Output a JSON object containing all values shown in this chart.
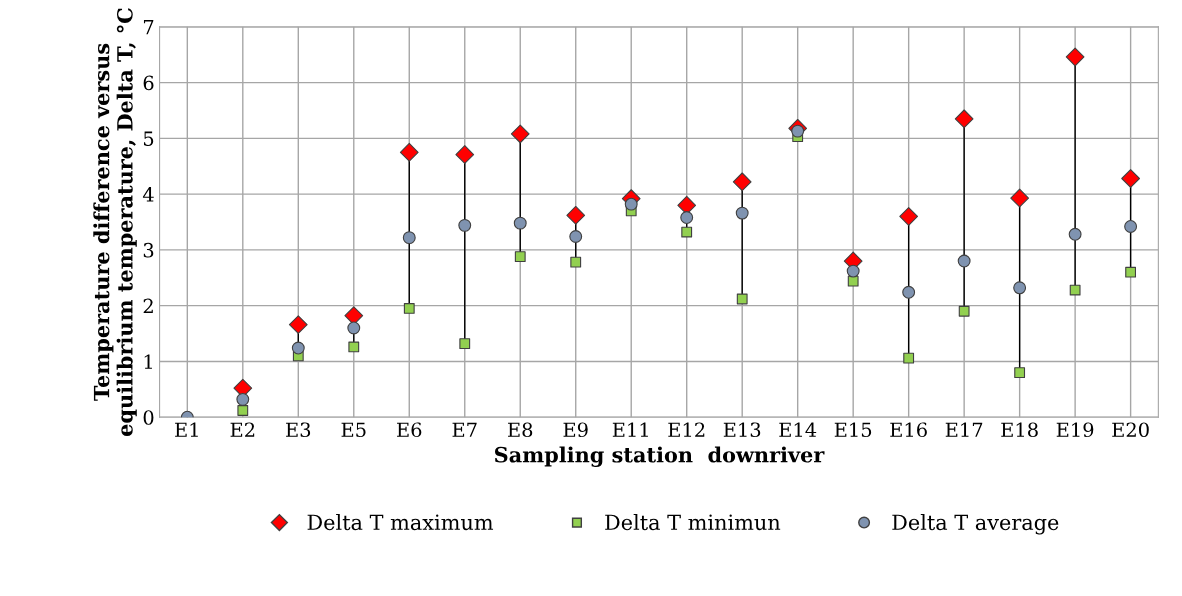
{
  "chart_data": {
    "type": "scatter",
    "xlabel": "Sampling station  downriver",
    "ylabel": "Temperature difference versus\nequilibrium temperature, Delta T, °C",
    "categories": [
      "E1",
      "E2",
      "E3",
      "E5",
      "E6",
      "E7",
      "E8",
      "E9",
      "E11",
      "E12",
      "E13",
      "E14",
      "E15",
      "E16",
      "E17",
      "E18",
      "E19",
      "E20"
    ],
    "series": [
      {
        "name": "Delta T maximum",
        "color": "#ff0000",
        "marker": "diamond",
        "values": [
          null,
          0.52,
          1.66,
          1.82,
          4.75,
          4.71,
          5.08,
          3.62,
          3.92,
          3.8,
          4.22,
          5.18,
          2.8,
          3.6,
          5.35,
          3.93,
          6.46,
          4.28
        ]
      },
      {
        "name": "Delta T minimun",
        "color": "#92d050",
        "marker": "square",
        "values": [
          null,
          0.12,
          1.1,
          1.26,
          1.95,
          1.32,
          2.88,
          2.78,
          3.7,
          3.32,
          2.12,
          5.03,
          2.44,
          1.06,
          1.9,
          0.8,
          2.28,
          2.6
        ]
      },
      {
        "name": "Delta T average",
        "color": "#7f93b0",
        "marker": "circle",
        "values": [
          0,
          0.32,
          1.24,
          1.6,
          3.22,
          3.44,
          3.48,
          3.24,
          3.82,
          3.58,
          3.66,
          5.13,
          2.62,
          2.24,
          2.8,
          2.32,
          3.28,
          3.42
        ]
      }
    ],
    "line_style": "solid",
    "ylim": [
      0,
      7
    ],
    "yticks": [
      0,
      1,
      2,
      3,
      4,
      5,
      6,
      7
    ],
    "grid": true,
    "legend": "bottom"
  }
}
